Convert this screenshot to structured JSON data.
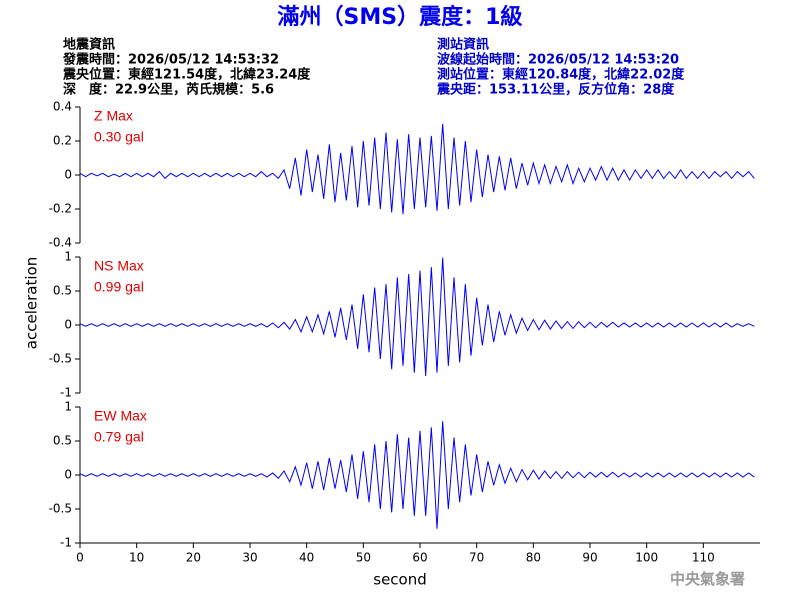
{
  "title": "滿州（SMS）震度：1級",
  "header": {
    "left": [
      "地震資訊",
      "發震時間：2026/05/12 14:53:32",
      "震央位置：東經121.54度，北緯23.24度",
      "深　度：22.9公里，芮氏規模：5.6"
    ],
    "right": [
      "測站資訊",
      "波線起始時間：2026/05/12 14:53:20",
      "測站位置：東經120.84度，北緯22.02度",
      "震央距：153.11公里，反方位角：28度"
    ]
  },
  "ylabel": "acceleration",
  "xlabel": "second",
  "watermark": "中央氣象署",
  "chart_data": [
    {
      "type": "line",
      "name": "Z Max",
      "max_label": "0.30 gal",
      "color": "#0000ff",
      "xlim": [
        0,
        120
      ],
      "ylim": [
        -0.4,
        0.4
      ],
      "yticks": [
        0.4,
        0.2,
        0,
        -0.2,
        -0.4
      ],
      "x": [
        0,
        1,
        2,
        3,
        4,
        5,
        6,
        7,
        8,
        9,
        10,
        11,
        12,
        13,
        14,
        15,
        16,
        17,
        18,
        19,
        20,
        21,
        22,
        23,
        24,
        25,
        26,
        27,
        28,
        29,
        30,
        31,
        32,
        33,
        34,
        35,
        36,
        37,
        38,
        39,
        40,
        41,
        42,
        43,
        44,
        45,
        46,
        47,
        48,
        49,
        50,
        51,
        52,
        53,
        54,
        55,
        56,
        57,
        58,
        59,
        60,
        61,
        62,
        63,
        64,
        65,
        66,
        67,
        68,
        69,
        70,
        71,
        72,
        73,
        74,
        75,
        76,
        77,
        78,
        79,
        80,
        81,
        82,
        83,
        84,
        85,
        86,
        87,
        88,
        89,
        90,
        91,
        92,
        93,
        94,
        95,
        96,
        97,
        98,
        99,
        100,
        101,
        102,
        103,
        104,
        105,
        106,
        107,
        108,
        109,
        110,
        111,
        112,
        113,
        114,
        115,
        116,
        117,
        118,
        119
      ],
      "values": [
        0.01,
        -0.01,
        0.01,
        -0.005,
        0.01,
        -0.01,
        0.005,
        -0.01,
        0.01,
        -0.01,
        0.01,
        -0.01,
        0.01,
        -0.01,
        0.02,
        -0.02,
        0.01,
        -0.01,
        0.01,
        -0.01,
        0.01,
        -0.01,
        0.01,
        -0.01,
        0.01,
        -0.01,
        0.01,
        -0.01,
        0.01,
        -0.01,
        0.01,
        -0.01,
        0.02,
        -0.01,
        0.01,
        -0.02,
        0.03,
        -0.08,
        0.1,
        -0.12,
        0.15,
        -0.1,
        0.12,
        -0.14,
        0.18,
        -0.16,
        0.13,
        -0.15,
        0.17,
        -0.19,
        0.2,
        -0.18,
        0.22,
        -0.2,
        0.25,
        -0.22,
        0.21,
        -0.23,
        0.24,
        -0.2,
        0.22,
        -0.19,
        0.23,
        -0.21,
        0.3,
        -0.2,
        0.22,
        -0.18,
        0.2,
        -0.16,
        0.15,
        -0.13,
        0.12,
        -0.1,
        0.11,
        -0.09,
        0.1,
        -0.08,
        0.07,
        -0.06,
        0.07,
        -0.05,
        0.06,
        -0.05,
        0.05,
        -0.04,
        0.06,
        -0.05,
        0.04,
        -0.04,
        0.04,
        -0.03,
        0.05,
        -0.03,
        0.04,
        -0.03,
        0.03,
        -0.03,
        0.03,
        -0.02,
        0.03,
        -0.02,
        0.03,
        -0.02,
        0.02,
        -0.02,
        0.03,
        -0.02,
        0.02,
        -0.02,
        0.02,
        -0.02,
        0.02,
        -0.01,
        0.02,
        -0.02,
        0.02,
        -0.01,
        0.02,
        -0.02
      ]
    },
    {
      "type": "line",
      "name": "NS Max",
      "max_label": "0.99 gal",
      "color": "#0000ff",
      "xlim": [
        0,
        120
      ],
      "ylim": [
        -1,
        1
      ],
      "yticks": [
        1,
        0.5,
        0,
        -0.5,
        -1
      ],
      "x": [
        0,
        1,
        2,
        3,
        4,
        5,
        6,
        7,
        8,
        9,
        10,
        11,
        12,
        13,
        14,
        15,
        16,
        17,
        18,
        19,
        20,
        21,
        22,
        23,
        24,
        25,
        26,
        27,
        28,
        29,
        30,
        31,
        32,
        33,
        34,
        35,
        36,
        37,
        38,
        39,
        40,
        41,
        42,
        43,
        44,
        45,
        46,
        47,
        48,
        49,
        50,
        51,
        52,
        53,
        54,
        55,
        56,
        57,
        58,
        59,
        60,
        61,
        62,
        63,
        64,
        65,
        66,
        67,
        68,
        69,
        70,
        71,
        72,
        73,
        74,
        75,
        76,
        77,
        78,
        79,
        80,
        81,
        82,
        83,
        84,
        85,
        86,
        87,
        88,
        89,
        90,
        91,
        92,
        93,
        94,
        95,
        96,
        97,
        98,
        99,
        100,
        101,
        102,
        103,
        104,
        105,
        106,
        107,
        108,
        109,
        110,
        111,
        112,
        113,
        114,
        115,
        116,
        117,
        118,
        119
      ],
      "values": [
        0.02,
        -0.02,
        0.02,
        -0.02,
        0.02,
        -0.02,
        0.02,
        -0.02,
        0.02,
        -0.02,
        0.02,
        -0.02,
        0.02,
        -0.02,
        0.02,
        -0.02,
        0.02,
        -0.02,
        0.02,
        -0.02,
        0.02,
        -0.02,
        0.02,
        -0.02,
        0.02,
        -0.02,
        0.02,
        -0.02,
        0.02,
        -0.02,
        0.02,
        -0.02,
        0.02,
        -0.03,
        0.03,
        -0.04,
        0.04,
        -0.06,
        0.08,
        -0.1,
        0.12,
        -0.1,
        0.15,
        -0.13,
        0.2,
        -0.18,
        0.25,
        -0.22,
        0.3,
        -0.35,
        0.45,
        -0.4,
        0.55,
        -0.5,
        0.6,
        -0.65,
        0.7,
        -0.6,
        0.75,
        -0.7,
        0.8,
        -0.75,
        0.85,
        -0.7,
        0.99,
        -0.6,
        0.7,
        -0.55,
        0.6,
        -0.45,
        0.4,
        -0.3,
        0.3,
        -0.25,
        0.2,
        -0.15,
        0.15,
        -0.12,
        0.1,
        -0.08,
        0.08,
        -0.07,
        0.07,
        -0.06,
        0.06,
        -0.05,
        0.05,
        -0.05,
        0.05,
        -0.04,
        0.04,
        -0.04,
        0.04,
        -0.03,
        0.04,
        -0.03,
        0.03,
        -0.03,
        0.03,
        -0.03,
        0.03,
        -0.03,
        0.03,
        -0.03,
        0.03,
        -0.03,
        0.03,
        -0.03,
        0.03,
        -0.03,
        0.03,
        -0.03,
        0.03,
        -0.03,
        0.03,
        -0.03,
        0.02,
        -0.02,
        0.02,
        -0.02
      ]
    },
    {
      "type": "line",
      "name": "EW Max",
      "max_label": "0.79 gal",
      "color": "#0000ff",
      "xlim": [
        0,
        120
      ],
      "ylim": [
        -1,
        1
      ],
      "yticks": [
        1,
        0.5,
        0,
        -0.5,
        -1
      ],
      "xticks": [
        0,
        10,
        20,
        30,
        40,
        50,
        60,
        70,
        80,
        90,
        100,
        110
      ],
      "x": [
        0,
        1,
        2,
        3,
        4,
        5,
        6,
        7,
        8,
        9,
        10,
        11,
        12,
        13,
        14,
        15,
        16,
        17,
        18,
        19,
        20,
        21,
        22,
        23,
        24,
        25,
        26,
        27,
        28,
        29,
        30,
        31,
        32,
        33,
        34,
        35,
        36,
        37,
        38,
        39,
        40,
        41,
        42,
        43,
        44,
        45,
        46,
        47,
        48,
        49,
        50,
        51,
        52,
        53,
        54,
        55,
        56,
        57,
        58,
        59,
        60,
        61,
        62,
        63,
        64,
        65,
        66,
        67,
        68,
        69,
        70,
        71,
        72,
        73,
        74,
        75,
        76,
        77,
        78,
        79,
        80,
        81,
        82,
        83,
        84,
        85,
        86,
        87,
        88,
        89,
        90,
        91,
        92,
        93,
        94,
        95,
        96,
        97,
        98,
        99,
        100,
        101,
        102,
        103,
        104,
        105,
        106,
        107,
        108,
        109,
        110,
        111,
        112,
        113,
        114,
        115,
        116,
        117,
        118,
        119
      ],
      "values": [
        0.02,
        -0.02,
        0.02,
        -0.02,
        0.02,
        -0.02,
        0.02,
        -0.02,
        0.02,
        -0.02,
        0.02,
        -0.02,
        0.02,
        -0.02,
        0.02,
        -0.02,
        0.02,
        -0.02,
        0.02,
        -0.02,
        0.02,
        -0.02,
        0.02,
        -0.02,
        0.02,
        -0.02,
        0.02,
        -0.02,
        0.02,
        -0.02,
        0.02,
        -0.02,
        0.02,
        -0.03,
        0.03,
        -0.05,
        0.06,
        -0.1,
        0.12,
        -0.15,
        0.18,
        -0.2,
        0.2,
        -0.22,
        0.25,
        -0.2,
        0.22,
        -0.25,
        0.3,
        -0.35,
        0.35,
        -0.4,
        0.45,
        -0.5,
        0.5,
        -0.55,
        0.6,
        -0.5,
        0.55,
        -0.6,
        0.65,
        -0.6,
        0.7,
        -0.79,
        0.79,
        -0.5,
        0.55,
        -0.4,
        0.45,
        -0.3,
        0.3,
        -0.25,
        0.2,
        -0.15,
        0.15,
        -0.12,
        0.1,
        -0.1,
        0.08,
        -0.07,
        0.07,
        -0.06,
        0.06,
        -0.05,
        0.05,
        -0.05,
        0.05,
        -0.04,
        0.04,
        -0.04,
        0.04,
        -0.03,
        0.04,
        -0.03,
        0.04,
        -0.03,
        0.03,
        -0.03,
        0.03,
        -0.03,
        0.03,
        -0.03,
        0.03,
        -0.03,
        0.03,
        -0.03,
        0.03,
        -0.03,
        0.03,
        -0.03,
        0.03,
        -0.03,
        0.03,
        -0.03,
        0.03,
        -0.03,
        0.03,
        -0.03,
        0.03,
        -0.03
      ]
    }
  ]
}
